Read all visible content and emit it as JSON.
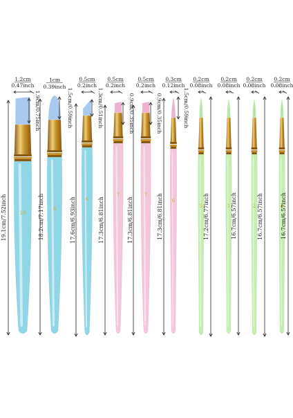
{
  "brushes": [
    {
      "id": "b1",
      "number": "10",
      "tip_width": "1.2cm",
      "tip_width_in": "0.47inch",
      "tip_length": "1.9cm/0.75inch",
      "total_length": "19.1cm/7.52inch",
      "handle_color": "#8fd6e6",
      "bristle_color": "#a9c9ee",
      "tip_shape": "flat"
    },
    {
      "id": "b2",
      "number": "8",
      "tip_width": "1cm",
      "tip_width_in": "0.39inch",
      "tip_length": "1.5cm/0.59inch",
      "total_length": "18.2cm/7.17inch",
      "handle_color": "#8fd6e6",
      "bristle_color": "#a9c9ee",
      "tip_shape": "filbert"
    },
    {
      "id": "b3",
      "number": "6",
      "tip_width": "0.5cm",
      "tip_width_in": "0.2inch",
      "tip_length": "1.3cm/0.51inch",
      "total_length": "17.6cm/6.93inch",
      "handle_color": "#8fd6e6",
      "bristle_color": "#a9c9ee",
      "tip_shape": "angle"
    },
    {
      "id": "b4",
      "number": "7",
      "tip_width": "0.5cm",
      "tip_width_in": "0.2inch",
      "tip_length": "0.9cm/0.35inch",
      "total_length": "17.3cm/6.81inch",
      "handle_color": "#f4c6dc",
      "bristle_color": "#eeb3d1",
      "tip_shape": "flat"
    },
    {
      "id": "b5",
      "number": "7",
      "tip_width": "0.5cm",
      "tip_width_in": "0.2inch",
      "tip_length": "0.9cm/0.35inch",
      "total_length": "17.3cm/6.81inch",
      "handle_color": "#f4c6dc",
      "bristle_color": "#eeb3d1",
      "tip_shape": "flat"
    },
    {
      "id": "b6",
      "number": "6",
      "tip_width": "0.3cm",
      "tip_width_in": "0.12inch",
      "tip_length": "1.5cm/0.59inch",
      "total_length": "17.3cm/6.81inch",
      "handle_color": "#f4c6dc",
      "bristle_color": "#eeb3d1",
      "tip_shape": "round"
    },
    {
      "id": "b7",
      "number": "5",
      "tip_width": "0.2cm",
      "tip_width_in": "0.08inch",
      "tip_length": "",
      "total_length": "17.2cm/6.77inch",
      "handle_color": "#c6eeb2",
      "bristle_color": "#b5e6a6",
      "tip_shape": "round"
    },
    {
      "id": "b8",
      "number": "1",
      "tip_width": "0.2cm",
      "tip_width_in": "0.08inch",
      "tip_length": "",
      "total_length": "16.7cm/6.57inch",
      "handle_color": "#c6eeb2",
      "bristle_color": "#b5e6a6",
      "tip_shape": "round"
    },
    {
      "id": "b9",
      "number": "2",
      "tip_width": "0.2cm",
      "tip_width_in": "0.08inch",
      "tip_length": "",
      "total_length": "16.7cm/6.57inch",
      "handle_color": "#c6eeb2",
      "bristle_color": "#b5e6a6",
      "tip_shape": "round"
    },
    {
      "id": "b10",
      "number": "4",
      "tip_width": "0.2cm",
      "tip_width_in": "0.08inch",
      "tip_length": "",
      "total_length": "16.7cm/6.57inch",
      "handle_color": "#c6eeb2",
      "bristle_color": "#b5e6a6",
      "tip_shape": "round"
    }
  ],
  "colors": {
    "ferrule": "#c9902a",
    "ferrule_light": "#f1d07a",
    "ferrule_dark": "#8a5a14",
    "text": "#222222",
    "number_text": "#d4a92a"
  }
}
